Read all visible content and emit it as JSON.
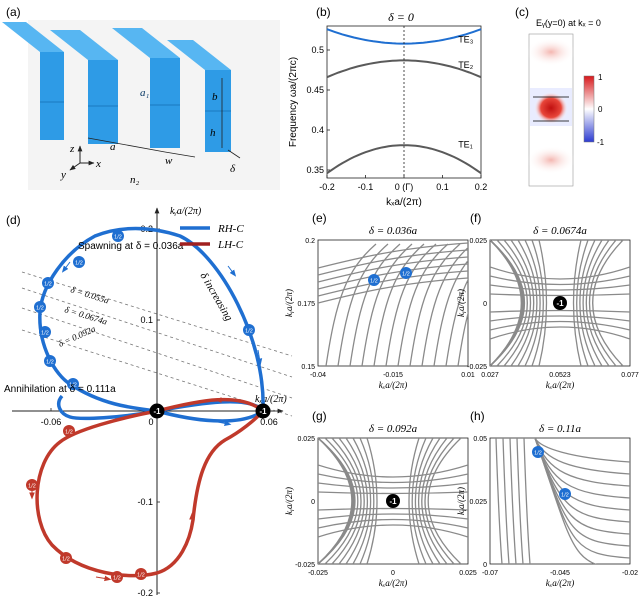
{
  "panel_labels": {
    "a": "(a)",
    "b": "(b)",
    "c": "(c)",
    "d": "(d)",
    "e": "(e)",
    "f": "(f)",
    "g": "(g)",
    "h": "(h)"
  },
  "colors": {
    "blue": "#1f6fd1",
    "red": "#c0392b",
    "gray": "#8a8a8a",
    "band": "#5a5a5a",
    "te3": "#1f6fd1",
    "prism": "#2e9be6",
    "prism_top": "#57b6f2",
    "prism_side": "#1f7fc8"
  },
  "panel_a": {
    "dim_labels": [
      "a",
      "w",
      "b",
      "h",
      "δ",
      "a₁"
    ],
    "axis_labels": [
      "z",
      "y",
      "x"
    ],
    "medium_label": "n₂"
  },
  "chart_data": [
    {
      "id": "b",
      "type": "line",
      "title": "δ = 0",
      "xlabel": "kₓa/(2π)",
      "ylabel": "Frequency ωa/(2πc)",
      "xlim": [
        -0.2,
        0.2
      ],
      "ylim": [
        0.34,
        0.53
      ],
      "xticks": [
        "-0.2",
        "-0.1",
        "0 (Γ)",
        "0.1",
        "0.2"
      ],
      "yticks": [
        "0.35",
        "0.4",
        "0.45",
        "0.5"
      ],
      "series": [
        {
          "name": "TE₃",
          "x": [
            -0.2,
            -0.1,
            0,
            0.1,
            0.2
          ],
          "y": [
            0.526,
            0.513,
            0.508,
            0.513,
            0.526
          ]
        },
        {
          "name": "TE₂",
          "x": [
            -0.2,
            -0.1,
            0,
            0.1,
            0.2
          ],
          "y": [
            0.466,
            0.481,
            0.487,
            0.481,
            0.466
          ]
        },
        {
          "name": "TE₁",
          "x": [
            -0.2,
            -0.1,
            0,
            0.1,
            0.2
          ],
          "y": [
            0.346,
            0.372,
            0.381,
            0.372,
            0.346
          ]
        }
      ]
    },
    {
      "id": "c",
      "type": "heatmap",
      "title": "Eᵧ(y=0) at kₓ = 0",
      "colorbar_ticks": [
        "1",
        "0",
        "-1"
      ]
    },
    {
      "id": "d",
      "type": "line",
      "xlabel": "kₓa/(2π)",
      "ylabel": "kᵧa/(2π)",
      "xticks": [
        "-0.06",
        "0",
        "0.06"
      ],
      "yticks": [
        "0.2",
        "0.1",
        "-0.1",
        "-0.2"
      ],
      "legend": [
        "RH-C",
        "LH-C"
      ],
      "annotations": [
        "Spawning at δ = 0.036a",
        "δ = 0.055a",
        "δ = 0.0674a",
        "δ = 0.092a",
        "Annihilation at δ = 0.111a",
        "δ increasing"
      ],
      "series": [
        {
          "name": "RH-C",
          "x": [
            0,
            0.03,
            0.055,
            0.06,
            0.05,
            0.02,
            -0.01,
            -0.04,
            -0.065,
            -0.075,
            -0.065,
            -0.04,
            -0.01,
            0.012,
            0.03,
            0.045,
            0.055,
            0.06,
            0.045,
            0.015,
            -0.01,
            -0.035,
            -0.06,
            -0.072,
            -0.06,
            -0.03,
            0
          ],
          "y": [
            0,
            -0.01,
            -0.012,
            0,
            0.012,
            0.05,
            0.07,
            0.075,
            0.06,
            0.1,
            0.15,
            0.18,
            0.19,
            0.18,
            0.15,
            0.11,
            0.07,
            0.02,
            -0.013,
            -0.03,
            -0.02,
            -0.01,
            0.02,
            0.05,
            0.04,
            0.01,
            0
          ]
        },
        {
          "name": "LH-C",
          "x": [
            0,
            0.02,
            0.04,
            0.058,
            0.05,
            0.03,
            0.03,
            0.02,
            0,
            -0.03,
            -0.05,
            -0.06,
            -0.05,
            -0.02,
            0
          ],
          "y": [
            0,
            0.005,
            0.012,
            0.01,
            0.005,
            -0.02,
            -0.08,
            -0.15,
            -0.2,
            -0.19,
            -0.15,
            -0.1,
            -0.05,
            -0.02,
            0
          ]
        }
      ],
      "marker_labels": [
        "1/2",
        "-1"
      ]
    },
    {
      "id": "e",
      "type": "line",
      "title": "δ = 0.036a",
      "xlabel": "kₓa/(2π)",
      "ylabel": "kᵧa/(2π)",
      "xticks": [
        "-0.04",
        "-0.015",
        "0.01"
      ],
      "yticks": [
        "0.2",
        "0.175",
        "0.15"
      ],
      "marker_labels": [
        "1/2",
        "1/2"
      ]
    },
    {
      "id": "f",
      "type": "line",
      "title": "δ = 0.0674a",
      "xlabel": "kₓa/(2π)",
      "ylabel": "kᵧa/(2π)",
      "xticks": [
        "0.027",
        "0.0523",
        "0.077"
      ],
      "yticks": [
        "0.025",
        "0",
        "-0.025"
      ],
      "marker_labels": [
        "-1"
      ]
    },
    {
      "id": "g",
      "type": "line",
      "title": "δ = 0.092a",
      "xlabel": "kₓa/(2π)",
      "ylabel": "kᵧa/(2π)",
      "xticks": [
        "-0.025",
        "0",
        "0.025"
      ],
      "yticks": [
        "0.025",
        "0",
        "-0.025"
      ],
      "marker_labels": [
        "-1"
      ]
    },
    {
      "id": "h",
      "type": "line",
      "title": "δ = 0.11a",
      "xlabel": "kₓa/(2π)",
      "ylabel": "kᵧa/(2π)",
      "xticks": [
        "-0.07",
        "-0.045",
        "-0.02"
      ],
      "yticks": [
        "0.05",
        "0.025",
        "0"
      ],
      "marker_labels": [
        "1/2",
        "1/2"
      ]
    }
  ]
}
